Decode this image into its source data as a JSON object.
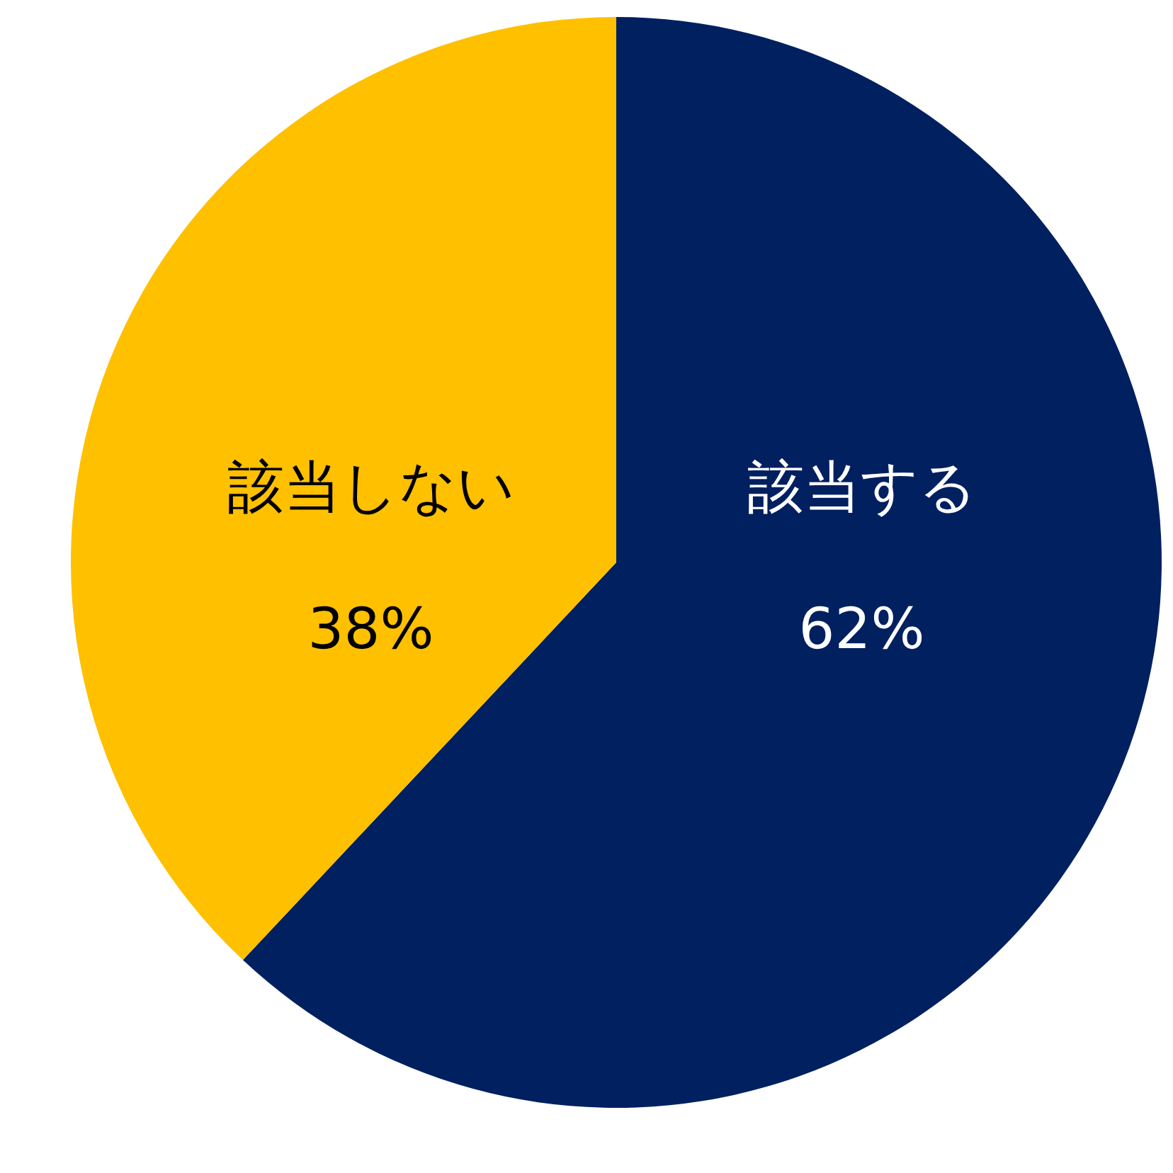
{
  "chart_data": {
    "type": "pie",
    "categories": [
      "該当する",
      "該当しない"
    ],
    "values": [
      62,
      38
    ],
    "colors": [
      "#002060",
      "#ffc000"
    ],
    "value_labels": [
      "62%",
      "38%"
    ]
  }
}
